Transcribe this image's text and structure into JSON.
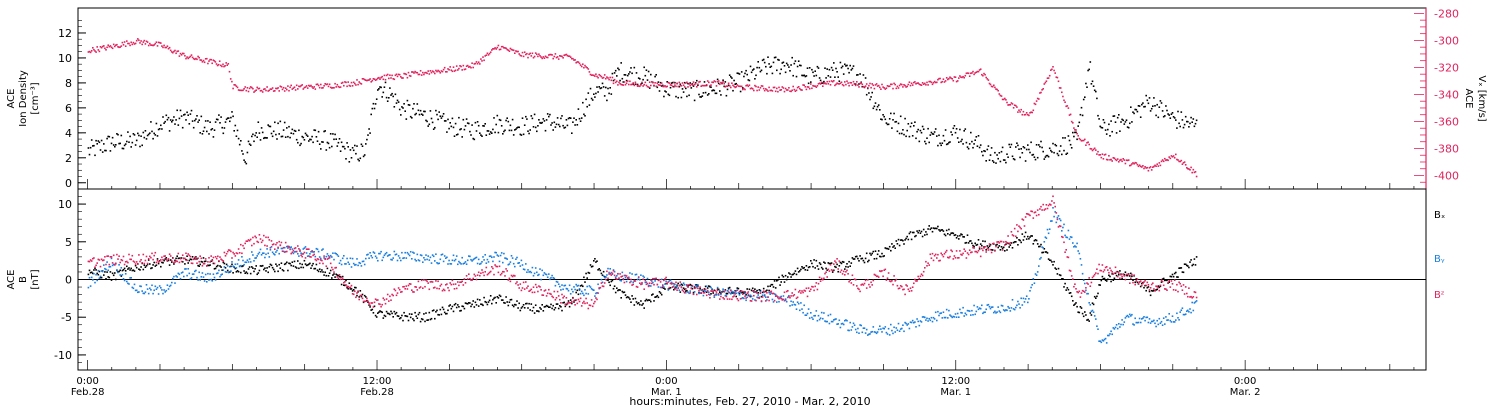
{
  "chart_data": [
    {
      "type": "scatter",
      "panel": "top",
      "ylabel_lines": [
        "ACE",
        "Ion Density",
        "[cm⁻³]"
      ],
      "ylim": [
        -0.5,
        14
      ],
      "yticks": [
        "0",
        "2",
        "4",
        "6",
        "8",
        "10",
        "12"
      ],
      "right_axis": {
        "ylabel_lines": [
          "ACE",
          "Vₓ [km/s]"
        ],
        "ylim": [
          -410,
          -276
        ],
        "yticks": [
          "-280",
          "-300",
          "-320",
          "-340",
          "-360",
          "-380",
          "-400"
        ],
        "color": "#e0245e"
      },
      "series": [
        {
          "color": "#000000",
          "points": [
            [
              0,
              2.6
            ],
            [
              1,
              3.3
            ],
            [
              2,
              3.4
            ],
            [
              3,
              4.8
            ],
            [
              4,
              5.3
            ],
            [
              5,
              4.4
            ],
            [
              6,
              5.1
            ],
            [
              6.5,
              2.0
            ],
            [
              7,
              4.3
            ],
            [
              8,
              4.2
            ],
            [
              9,
              3.7
            ],
            [
              10,
              3.4
            ],
            [
              11,
              2.3
            ],
            [
              11.5,
              2.6
            ],
            [
              12,
              7.9
            ],
            [
              12.5,
              7.2
            ],
            [
              13,
              6.0
            ],
            [
              14,
              5.4
            ],
            [
              15,
              4.6
            ],
            [
              16,
              4.3
            ],
            [
              17,
              4.8
            ],
            [
              18,
              4.6
            ],
            [
              19,
              5.0
            ],
            [
              20,
              4.5
            ],
            [
              21,
              7.4
            ],
            [
              21.5,
              7.3
            ],
            [
              22,
              9.0
            ],
            [
              23,
              8.6
            ],
            [
              24,
              7.6
            ],
            [
              25,
              7.4
            ],
            [
              26,
              7.6
            ],
            [
              27,
              8.1
            ],
            [
              28,
              9.3
            ],
            [
              29,
              9.6
            ],
            [
              30,
              8.5
            ],
            [
              31,
              9.0
            ],
            [
              32,
              8.7
            ],
            [
              33,
              5.2
            ],
            [
              34,
              4.5
            ],
            [
              35,
              3.7
            ],
            [
              36,
              4.1
            ],
            [
              37,
              3.0
            ],
            [
              37.5,
              2.0
            ],
            [
              38,
              2.4
            ],
            [
              39,
              2.6
            ],
            [
              40,
              2.8
            ],
            [
              41,
              3.4
            ],
            [
              41.5,
              9.5
            ],
            [
              42,
              4.3
            ],
            [
              43,
              5.0
            ],
            [
              44,
              6.6
            ],
            [
              45,
              5.2
            ],
            [
              46,
              4.6
            ]
          ]
        },
        {
          "color": "#e0245e",
          "axis": "right",
          "points": [
            [
              0,
              -307
            ],
            [
              1,
              -304
            ],
            [
              2,
              -300
            ],
            [
              3,
              -303
            ],
            [
              4,
              -311
            ],
            [
              5,
              -315
            ],
            [
              5.8,
              -318
            ],
            [
              6,
              -334
            ],
            [
              7,
              -336
            ],
            [
              8,
              -335
            ],
            [
              9,
              -334
            ],
            [
              10,
              -333
            ],
            [
              11,
              -331
            ],
            [
              12,
              -327
            ],
            [
              13,
              -326
            ],
            [
              14,
              -323
            ],
            [
              15,
              -321
            ],
            [
              16,
              -318
            ],
            [
              17,
              -304
            ],
            [
              18,
              -310
            ],
            [
              19,
              -311
            ],
            [
              20,
              -312
            ],
            [
              21,
              -325
            ],
            [
              21.5,
              -327
            ],
            [
              22,
              -331
            ],
            [
              23,
              -332
            ],
            [
              24,
              -332
            ],
            [
              25,
              -332
            ],
            [
              26,
              -331
            ],
            [
              27,
              -334
            ],
            [
              28,
              -335
            ],
            [
              29,
              -336
            ],
            [
              30,
              -333
            ],
            [
              31,
              -331
            ],
            [
              32,
              -332
            ],
            [
              33,
              -334
            ],
            [
              34,
              -332
            ],
            [
              35,
              -330
            ],
            [
              36,
              -328
            ],
            [
              37,
              -322
            ],
            [
              38,
              -344
            ],
            [
              39,
              -356
            ],
            [
              40,
              -319
            ],
            [
              41,
              -370
            ],
            [
              41.5,
              -377
            ],
            [
              42,
              -385
            ],
            [
              43,
              -389
            ],
            [
              44,
              -395
            ],
            [
              45,
              -384
            ],
            [
              46,
              -399
            ]
          ]
        }
      ]
    },
    {
      "type": "scatter",
      "panel": "bottom",
      "ylabel_lines": [
        "ACE",
        "B",
        "[nT]"
      ],
      "ylim": [
        -12,
        12
      ],
      "yticks": [
        "10",
        "5",
        "0",
        "-5",
        "-10"
      ],
      "legend": [
        "Bₓ",
        "Bᵧ",
        "Bᶻ"
      ],
      "legend_colors": [
        "#000000",
        "#1a7fe0",
        "#e0245e"
      ],
      "series": [
        {
          "color": "#000000",
          "points": [
            [
              0,
              1.2
            ],
            [
              1,
              0.5
            ],
            [
              2,
              1.8
            ],
            [
              3,
              2.4
            ],
            [
              4,
              2.7
            ],
            [
              5,
              2.3
            ],
            [
              6,
              1.5
            ],
            [
              7,
              1.3
            ],
            [
              8,
              1.8
            ],
            [
              9,
              2.1
            ],
            [
              10,
              1.0
            ],
            [
              11,
              -1.0
            ],
            [
              12,
              -4.5
            ],
            [
              13,
              -4.8
            ],
            [
              14,
              -4.9
            ],
            [
              15,
              -3.8
            ],
            [
              16,
              -3.2
            ],
            [
              17,
              -2.4
            ],
            [
              18,
              -3.6
            ],
            [
              19,
              -3.9
            ],
            [
              20,
              -3.2
            ],
            [
              21,
              2.5
            ],
            [
              21.5,
              0.4
            ],
            [
              22,
              -1.7
            ],
            [
              23,
              -3.3
            ],
            [
              24,
              -0.9
            ],
            [
              25,
              -1.1
            ],
            [
              26,
              -1.4
            ],
            [
              27,
              -1.6
            ],
            [
              28,
              -1.6
            ],
            [
              29,
              0.6
            ],
            [
              30,
              2.2
            ],
            [
              31,
              1.6
            ],
            [
              32,
              2.8
            ],
            [
              33,
              3.6
            ],
            [
              34,
              5.7
            ],
            [
              35,
              6.8
            ],
            [
              36,
              6.0
            ],
            [
              37,
              4.7
            ],
            [
              38,
              4.4
            ],
            [
              39,
              6.0
            ],
            [
              40,
              2.3
            ],
            [
              41,
              -3.6
            ],
            [
              41.5,
              -5.0
            ],
            [
              42,
              0.1
            ],
            [
              43,
              0.9
            ],
            [
              44,
              -1.5
            ],
            [
              45,
              0.6
            ],
            [
              46,
              2.8
            ]
          ]
        },
        {
          "color": "#1a7fe0",
          "points": [
            [
              0,
              -0.4
            ],
            [
              1,
              2.5
            ],
            [
              2,
              -1.2
            ],
            [
              3,
              -1.4
            ],
            [
              4,
              1.0
            ],
            [
              5,
              0.2
            ],
            [
              6,
              1.9
            ],
            [
              7,
              3.5
            ],
            [
              8,
              4.0
            ],
            [
              9,
              3.8
            ],
            [
              10,
              3.3
            ],
            [
              11,
              2.2
            ],
            [
              12,
              3.3
            ],
            [
              13,
              3.2
            ],
            [
              14,
              3.0
            ],
            [
              15,
              2.7
            ],
            [
              16,
              2.5
            ],
            [
              17,
              3.1
            ],
            [
              18,
              2.1
            ],
            [
              19,
              0.3
            ],
            [
              20,
              -1.2
            ],
            [
              21,
              -1.5
            ],
            [
              21.5,
              1.0
            ],
            [
              22,
              0.5
            ],
            [
              23,
              0.1
            ],
            [
              24,
              -0.6
            ],
            [
              25,
              -1.2
            ],
            [
              26,
              -1.6
            ],
            [
              27,
              -1.9
            ],
            [
              28,
              -2.2
            ],
            [
              29,
              -2.6
            ],
            [
              30,
              -4.5
            ],
            [
              31,
              -5.4
            ],
            [
              32,
              -6.6
            ],
            [
              33,
              -6.7
            ],
            [
              34,
              -6.0
            ],
            [
              35,
              -4.8
            ],
            [
              36,
              -4.3
            ],
            [
              37,
              -3.9
            ],
            [
              38,
              -3.6
            ],
            [
              39,
              -2.6
            ],
            [
              40,
              9.0
            ],
            [
              41,
              4.2
            ],
            [
              41.5,
              -2.5
            ],
            [
              42,
              -8.5
            ],
            [
              43,
              -5.0
            ],
            [
              44,
              -5.6
            ],
            [
              45,
              -5.0
            ],
            [
              46,
              -3.2
            ]
          ]
        },
        {
          "color": "#e0245e",
          "points": [
            [
              0,
              2.3
            ],
            [
              1,
              2.7
            ],
            [
              2,
              2.8
            ],
            [
              3,
              3.0
            ],
            [
              4,
              2.9
            ],
            [
              5,
              2.5
            ],
            [
              6,
              3.5
            ],
            [
              7,
              5.6
            ],
            [
              8,
              4.5
            ],
            [
              9,
              3.6
            ],
            [
              10,
              2.4
            ],
            [
              11,
              -1.7
            ],
            [
              12,
              -3.1
            ],
            [
              13,
              -1.2
            ],
            [
              14,
              -0.5
            ],
            [
              15,
              -0.8
            ],
            [
              16,
              0.6
            ],
            [
              17,
              1.6
            ],
            [
              18,
              -0.8
            ],
            [
              19,
              -1.5
            ],
            [
              20,
              -2.9
            ],
            [
              21,
              -3.2
            ],
            [
              21.5,
              1.0
            ],
            [
              22,
              0.4
            ],
            [
              23,
              -0.5
            ],
            [
              24,
              -0.3
            ],
            [
              25,
              -1.3
            ],
            [
              26,
              -1.8
            ],
            [
              27,
              -2.0
            ],
            [
              28,
              -2.1
            ],
            [
              29,
              -2.0
            ],
            [
              30,
              -1.4
            ],
            [
              31,
              2.3
            ],
            [
              32,
              -1.0
            ],
            [
              33,
              0.9
            ],
            [
              34,
              -1.5
            ],
            [
              35,
              3.2
            ],
            [
              36,
              3.4
            ],
            [
              37,
              3.8
            ],
            [
              38,
              4.8
            ],
            [
              39,
              8.5
            ],
            [
              40,
              10.5
            ],
            [
              41,
              -2.0
            ],
            [
              41.5,
              -0.3
            ],
            [
              42,
              1.8
            ],
            [
              43,
              0.5
            ],
            [
              44,
              -0.8
            ],
            [
              45,
              -0.6
            ],
            [
              46,
              -2.1
            ]
          ]
        }
      ]
    }
  ],
  "x_axis": {
    "tick_labels": [
      {
        "t": 0,
        "lines": [
          "0:00",
          "Feb.28"
        ]
      },
      {
        "t": 12,
        "lines": [
          "12:00",
          "Feb.28"
        ]
      },
      {
        "t": 24,
        "lines": [
          "0:00",
          "Mar. 1"
        ]
      },
      {
        "t": 36,
        "lines": [
          "12:00",
          "Mar. 1"
        ]
      },
      {
        "t": 48,
        "lines": [
          "0:00",
          "Mar. 2"
        ]
      }
    ],
    "xlim": [
      -0.4,
      55.5
    ],
    "xlabel": "hours:minutes, Feb. 27, 2010 - Mar.  2, 2010"
  }
}
